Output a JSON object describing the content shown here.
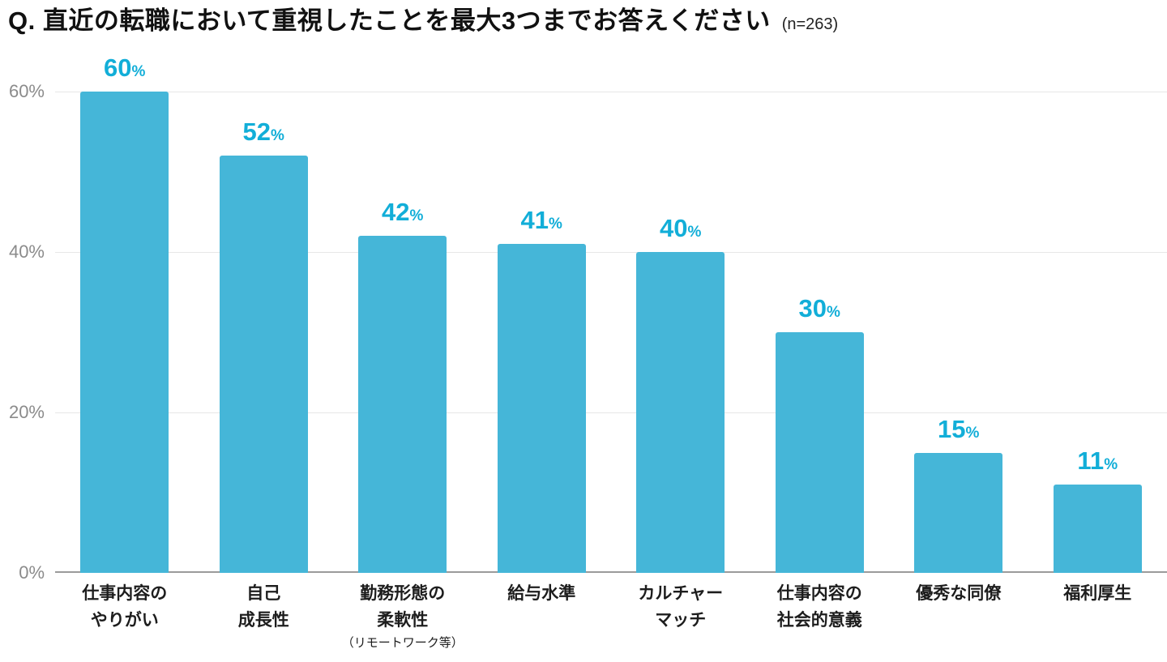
{
  "title": {
    "main": "Q. 直近の転職において重視したことを最大3つまでお答えください",
    "sample_size": "(n=263)"
  },
  "chart_data": {
    "type": "bar",
    "title": "Q. 直近の転職において重視したことを最大3つまでお答えください (n=263)",
    "categories": [
      {
        "lines": [
          "仕事内容の",
          "やりがい"
        ],
        "note": ""
      },
      {
        "lines": [
          "自己",
          "成長性"
        ],
        "note": ""
      },
      {
        "lines": [
          "勤務形態の",
          "柔軟性"
        ],
        "note": "（リモートワーク等）"
      },
      {
        "lines": [
          "給与水準"
        ],
        "note": ""
      },
      {
        "lines": [
          "カルチャー",
          "マッチ"
        ],
        "note": ""
      },
      {
        "lines": [
          "仕事内容の",
          "社会的意義"
        ],
        "note": ""
      },
      {
        "lines": [
          "優秀な同僚"
        ],
        "note": ""
      },
      {
        "lines": [
          "福利厚生"
        ],
        "note": ""
      }
    ],
    "values": [
      60,
      52,
      42,
      41,
      40,
      30,
      15,
      11
    ],
    "value_suffix": "%",
    "xlabel": "",
    "ylabel": "",
    "ylim": [
      0,
      60
    ],
    "y_axis": {
      "ticks": [
        {
          "value": 0,
          "label": "0%"
        },
        {
          "value": 20,
          "label": "20%"
        },
        {
          "value": 40,
          "label": "40%"
        },
        {
          "value": 60,
          "label": "60%"
        }
      ]
    },
    "grid": true,
    "legend": false,
    "colors": {
      "bar": "#45b6d8",
      "value_label": "#12aed8",
      "axis_label": "#8b8b8b",
      "gridline": "#e7e7e7",
      "baseline": "#9b9b9b"
    }
  }
}
